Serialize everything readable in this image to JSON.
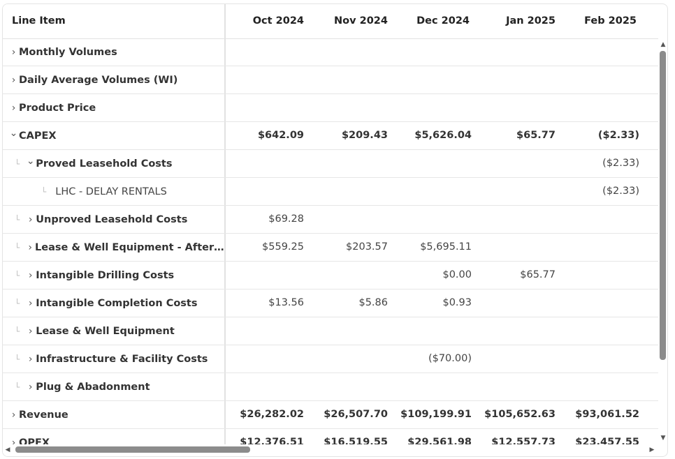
{
  "header": {
    "line_item": "Line Item",
    "months": [
      "Oct 2024",
      "Nov 2024",
      "Dec 2024",
      "Jan 2025",
      "Feb 2025"
    ]
  },
  "rows": [
    {
      "label": "Monthly Volumes",
      "chevron": ">",
      "tree": "",
      "values": [
        "",
        "",
        "",
        "",
        ""
      ]
    },
    {
      "label": "Daily Average Volumes (WI)",
      "chevron": ">",
      "tree": "",
      "values": [
        "",
        "",
        "",
        "",
        ""
      ]
    },
    {
      "label": "Product Price",
      "chevron": ">",
      "tree": "",
      "values": [
        "",
        "",
        "",
        "",
        ""
      ]
    },
    {
      "label": "CAPEX",
      "chevron": "v",
      "tree": "",
      "values": [
        "$642.09",
        "$209.43",
        "$5,626.04",
        "$65.77",
        "($2.33)"
      ]
    },
    {
      "label": "Proved Leasehold Costs",
      "chevron": "v",
      "tree": "└",
      "values": [
        "",
        "",
        "",
        "",
        "($2.33)"
      ]
    },
    {
      "label": "LHC - DELAY RENTALS",
      "chevron": "",
      "tree": "└",
      "values": [
        "",
        "",
        "",
        "",
        "($2.33)"
      ]
    },
    {
      "label": "Unproved Leasehold Costs",
      "chevron": ">",
      "tree": "└",
      "values": [
        "$69.28",
        "",
        "",
        "",
        ""
      ]
    },
    {
      "label": "Lease & Well Equipment - After Ca...",
      "chevron": ">",
      "tree": "└",
      "values": [
        "$559.25",
        "$203.57",
        "$5,695.11",
        "",
        ""
      ]
    },
    {
      "label": "Intangible Drilling Costs",
      "chevron": ">",
      "tree": "└",
      "values": [
        "",
        "",
        "$0.00",
        "$65.77",
        ""
      ]
    },
    {
      "label": "Intangible Completion Costs",
      "chevron": ">",
      "tree": "└",
      "values": [
        "$13.56",
        "$5.86",
        "$0.93",
        "",
        ""
      ]
    },
    {
      "label": "Lease & Well Equipment",
      "chevron": ">",
      "tree": "└",
      "values": [
        "",
        "",
        "",
        "",
        ""
      ]
    },
    {
      "label": "Infrastructure & Facility Costs",
      "chevron": ">",
      "tree": "└",
      "values": [
        "",
        "",
        "($70.00)",
        "",
        ""
      ]
    },
    {
      "label": "Plug & Abadonment",
      "chevron": ">",
      "tree": "└",
      "values": [
        "",
        "",
        "",
        "",
        ""
      ]
    },
    {
      "label": "Revenue",
      "chevron": ">",
      "tree": "",
      "values": [
        "$26,282.02",
        "$26,507.70",
        "$109,199.91",
        "$105,652.63",
        "$93,061.52"
      ]
    },
    {
      "label": "OPEX",
      "chevron": ">",
      "tree": "",
      "values": [
        "$12,376.51",
        "$16,519.55",
        "$29,561.98",
        "$12,557.73",
        "$23,457.55"
      ]
    }
  ],
  "icons": {
    "expand": "chevron-right-icon",
    "collapse": "chevron-down-icon",
    "tree": "tree-branch-icon"
  }
}
